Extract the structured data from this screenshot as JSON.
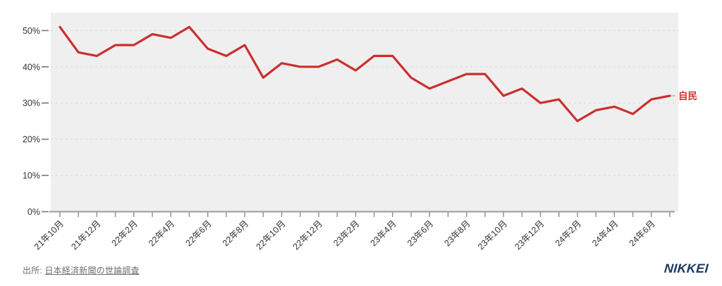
{
  "chart_data": {
    "type": "line",
    "title": "",
    "x_start": "21年10月",
    "x_end": "24年7月",
    "x_minor_tick": "monthly",
    "x_label_every": 2,
    "x_tick_labels": [
      "21年10月",
      "21年12月",
      "22年2月",
      "22年4月",
      "22年6月",
      "22年8月",
      "22年10月",
      "22年12月",
      "23年2月",
      "23年4月",
      "23年6月",
      "23年8月",
      "23年10月",
      "23年12月",
      "24年2月",
      "24年4月",
      "24年6月"
    ],
    "yticks": [
      50,
      40,
      30,
      20,
      10,
      0
    ],
    "ytick_suffix": "%",
    "ylim": [
      0,
      55
    ],
    "grid": "horizontal-dashed",
    "legend_position": "end-of-line",
    "series": [
      {
        "name": "自民",
        "color": "#c9302e",
        "values": [
          51,
          44,
          43,
          46,
          46,
          49,
          48,
          51,
          45,
          43,
          46,
          37,
          41,
          40,
          40,
          42,
          39,
          43,
          43,
          37,
          34,
          36,
          38,
          38,
          32,
          34,
          30,
          31,
          25,
          28,
          29,
          27,
          31,
          32
        ]
      }
    ]
  },
  "colors": {
    "plot_background": "#f0efef",
    "gridline": "#d9d9d9",
    "axis": "#9a9a9a",
    "tick": "#8c8c8c",
    "tick_label": "#333333",
    "series_red": "#c9302e",
    "end_label_red": "#d23331",
    "end_label_dash": "#b9b9b9",
    "source_text": "#6e6e6e",
    "logo_navy": "#1c3a63"
  },
  "footer": {
    "source_prefix": "出所: ",
    "source_link": "日本経済新聞の世論調査",
    "logo": "NIKKEI"
  }
}
